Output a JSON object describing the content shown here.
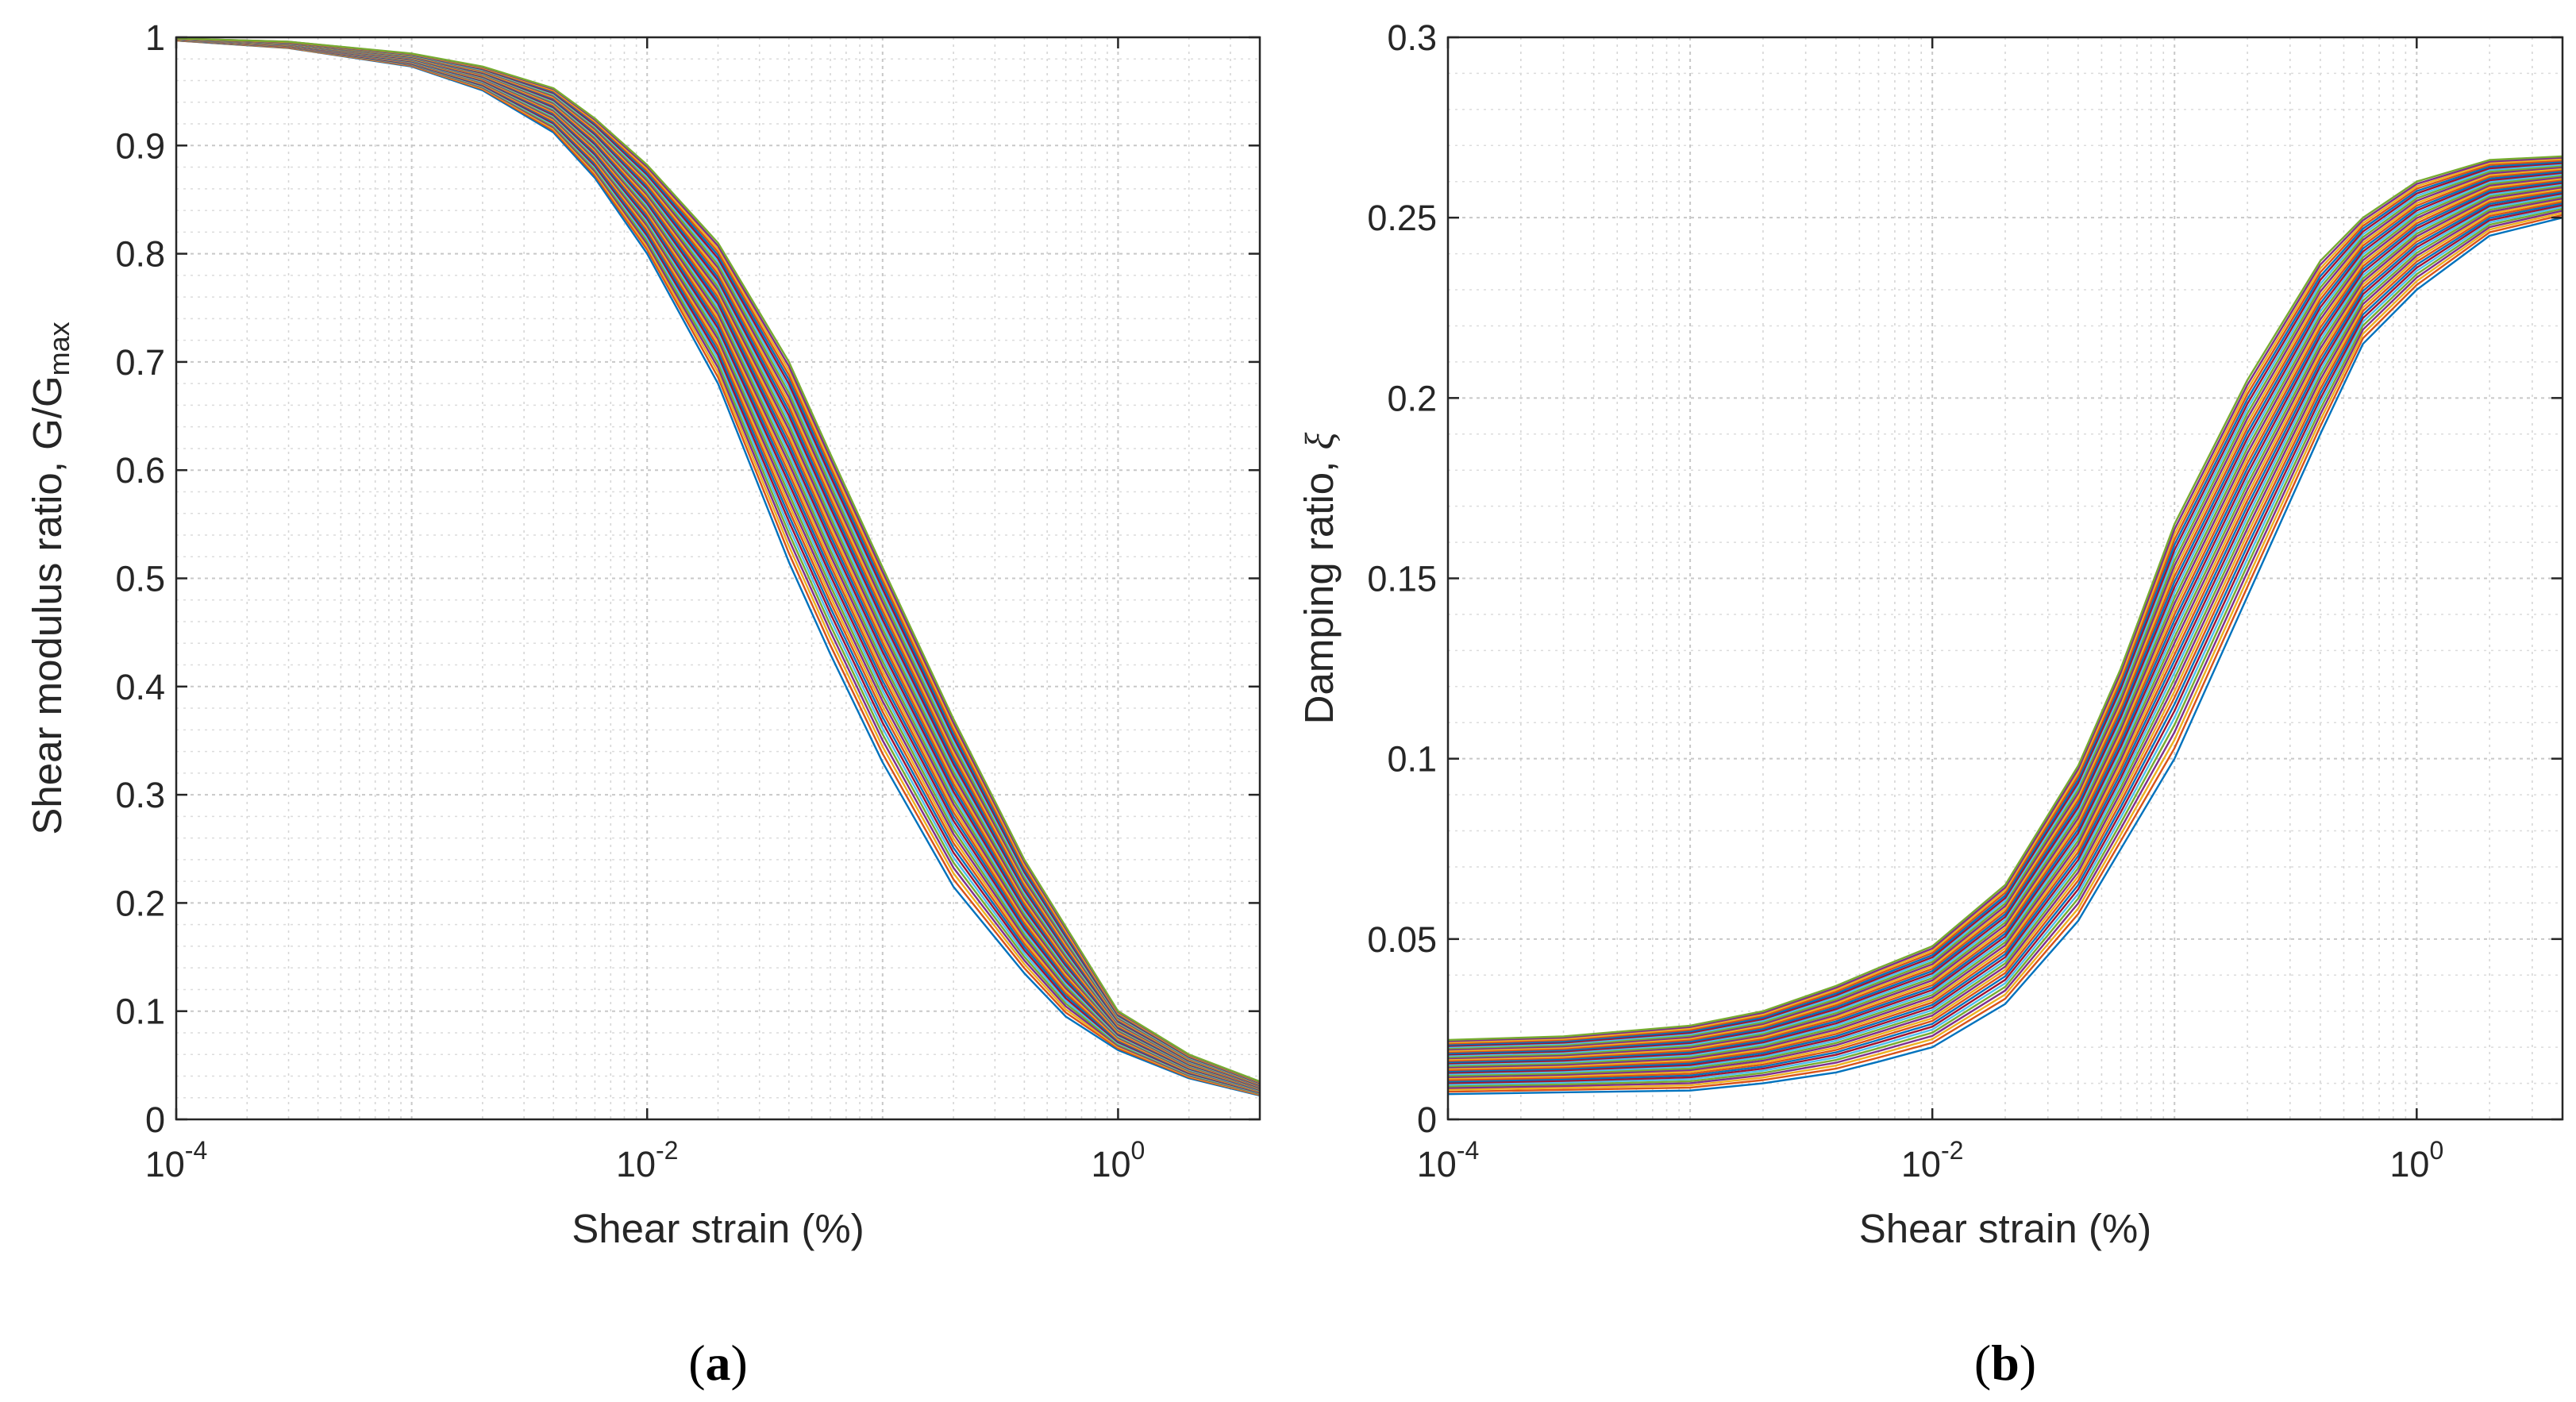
{
  "chart_data": [
    {
      "type": "line",
      "panel_label": "a",
      "title": "",
      "xlabel": "Shear strain (%)",
      "ylabel_main": "Shear modulus ratio, G/G",
      "ylabel_sub": "max",
      "xscale": "log",
      "xlim": [
        0.0001,
        4
      ],
      "ylim": [
        0,
        1
      ],
      "grid": true,
      "minor_grid": true,
      "x_ticks": [
        {
          "base": "10",
          "exp": "-4"
        },
        {
          "base": "10",
          "exp": "-2"
        },
        {
          "base": "10",
          "exp": "0"
        }
      ],
      "y_ticks": [
        "0",
        "0.1",
        "0.2",
        "0.3",
        "0.4",
        "0.5",
        "0.6",
        "0.7",
        "0.8",
        "0.9",
        "1"
      ],
      "x": [
        0.0001,
        0.0003,
        0.001,
        0.002,
        0.004,
        0.006,
        0.01,
        0.02,
        0.04,
        0.06,
        0.1,
        0.2,
        0.4,
        0.6,
        1.0,
        2.0,
        4.0
      ],
      "series_count": 40,
      "envelope": {
        "lower": [
          0.997,
          0.99,
          0.973,
          0.951,
          0.912,
          0.87,
          0.8,
          0.68,
          0.515,
          0.43,
          0.33,
          0.215,
          0.135,
          0.095,
          0.064,
          0.038,
          0.022
        ],
        "upper": [
          0.999,
          0.996,
          0.985,
          0.973,
          0.953,
          0.925,
          0.882,
          0.81,
          0.7,
          0.615,
          0.51,
          0.37,
          0.24,
          0.178,
          0.1,
          0.06,
          0.035
        ]
      }
    },
    {
      "type": "line",
      "panel_label": "b",
      "title": "",
      "xlabel": "Shear strain (%)",
      "ylabel_main": "Damping ratio, ",
      "ylabel_symbol": "ξ",
      "xscale": "log",
      "xlim": [
        0.0001,
        4
      ],
      "ylim": [
        0,
        0.3
      ],
      "grid": true,
      "minor_grid": true,
      "x_ticks": [
        {
          "base": "10",
          "exp": "-4"
        },
        {
          "base": "10",
          "exp": "-2"
        },
        {
          "base": "10",
          "exp": "0"
        }
      ],
      "y_ticks": [
        "0",
        "0.05",
        "0.1",
        "0.15",
        "0.2",
        "0.25",
        "0.3"
      ],
      "x": [
        0.0001,
        0.0003,
        0.001,
        0.002,
        0.004,
        0.006,
        0.01,
        0.02,
        0.04,
        0.06,
        0.1,
        0.2,
        0.4,
        0.6,
        1.0,
        2.0,
        4.0
      ],
      "series_count": 40,
      "envelope": {
        "lower": [
          0.007,
          0.0075,
          0.008,
          0.01,
          0.013,
          0.016,
          0.02,
          0.032,
          0.055,
          0.075,
          0.1,
          0.145,
          0.19,
          0.215,
          0.23,
          0.245,
          0.25
        ],
        "upper": [
          0.022,
          0.023,
          0.026,
          0.03,
          0.037,
          0.042,
          0.048,
          0.065,
          0.098,
          0.125,
          0.165,
          0.205,
          0.238,
          0.25,
          0.26,
          0.266,
          0.267
        ]
      }
    }
  ]
}
